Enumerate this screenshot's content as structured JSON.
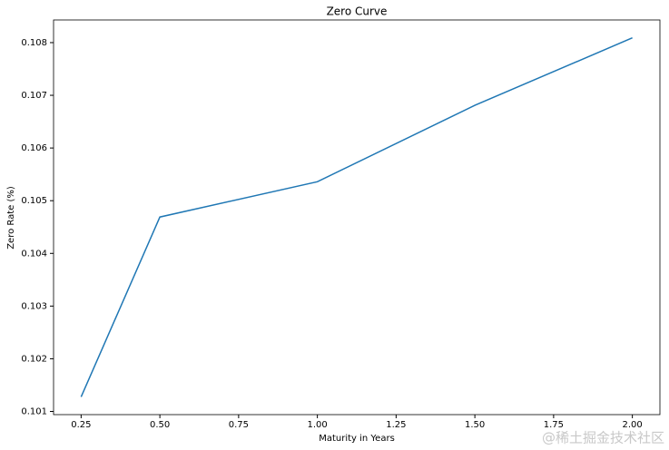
{
  "chart_data": {
    "type": "line",
    "title": "Zero Curve",
    "x_label": "Maturity in Years",
    "y_label": "Zero Rate (%)",
    "x": [
      0.25,
      0.5,
      1.0,
      1.5,
      2.0
    ],
    "series": [
      {
        "color": "#1f77b4",
        "values": [
          0.101276,
          0.10469,
          0.10536,
          0.10681,
          0.10809
        ]
      }
    ],
    "xlim": [
      0.1625,
      2.0875
    ],
    "xticks": [
      0.25,
      {
        "value": 0.5,
        "label": "0.50"
      },
      0.75,
      {
        "value": 1.0,
        "label": "1.00"
      },
      1.25,
      {
        "value": 1.5,
        "label": "1.50"
      },
      1.75,
      {
        "value": 2.0,
        "label": "2.00"
      }
    ],
    "ylim": [
      0.10094,
      0.10843
    ],
    "yticks": [
      0.101,
      0.102,
      0.103,
      0.104,
      0.105,
      0.106,
      0.107,
      0.108
    ],
    "grid": false,
    "watermark": "@稀土掘金技术社区"
  }
}
